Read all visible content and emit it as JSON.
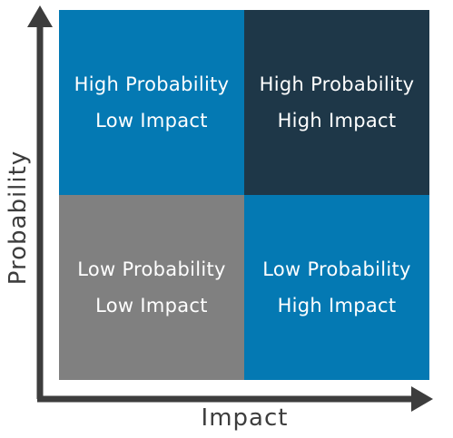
{
  "quadrants": {
    "top_left": {
      "line1": "High Probability",
      "line2": "Low Impact",
      "color": "#0479b3"
    },
    "top_right": {
      "line1": "High Probability",
      "line2": "High Impact",
      "color": "#1e3748"
    },
    "bottom_left": {
      "line1": "Low Probability",
      "line2": "Low Impact",
      "color": "#808080"
    },
    "bottom_right": {
      "line1": "Low Probability",
      "line2": "High Impact",
      "color": "#0479b3"
    }
  },
  "axes": {
    "x_label": "Impact",
    "y_label": "Probability",
    "color": "#3d3d3d"
  }
}
